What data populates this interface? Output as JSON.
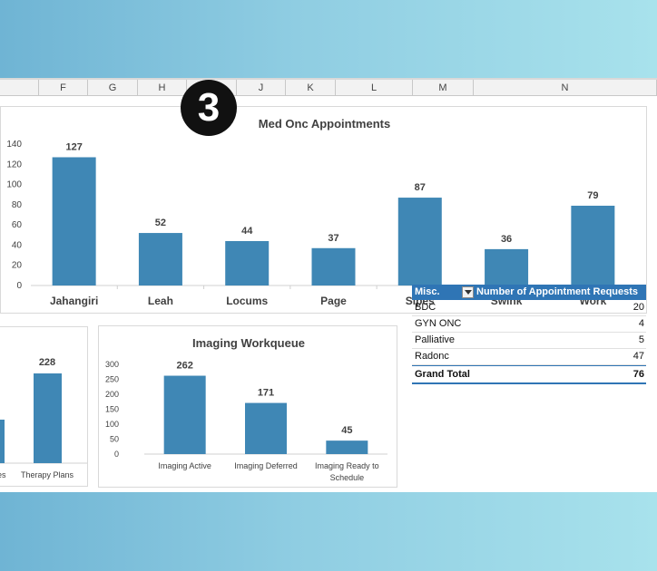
{
  "spreadsheet": {
    "columns": [
      {
        "id": "col-f",
        "label": "F"
      },
      {
        "id": "col-g",
        "label": "G"
      },
      {
        "id": "col-h",
        "label": "H"
      },
      {
        "id": "col-i",
        "label": "I"
      },
      {
        "id": "col-j",
        "label": "J"
      },
      {
        "id": "col-k",
        "label": "K"
      },
      {
        "id": "col-l",
        "label": "L"
      },
      {
        "id": "col-m",
        "label": "M"
      },
      {
        "id": "col-n",
        "label": "N"
      }
    ]
  },
  "step_badge": "3",
  "bar_color": "#3f87b5",
  "chart_data": [
    {
      "type": "bar",
      "title": "Med Onc Appointments",
      "categories": [
        "Jahangiri",
        "Leah",
        "Locums",
        "Page",
        "Sipes",
        "Swink",
        "Work"
      ],
      "values": [
        127,
        52,
        44,
        37,
        87,
        36,
        79
      ],
      "ylim": [
        0,
        140
      ],
      "yticks": [
        0,
        20,
        40,
        60,
        80,
        100,
        120,
        140
      ],
      "grid": false,
      "xlabel": "",
      "ylabel": ""
    },
    {
      "type": "bar",
      "title": "Imaging Workqueue",
      "categories": [
        "Imaging Active",
        "Imaging Deferred",
        "Imaging Ready to Schedule"
      ],
      "values": [
        262,
        171,
        45
      ],
      "ylim": [
        0,
        300
      ],
      "yticks": [
        0,
        50,
        100,
        150,
        200,
        250,
        300
      ],
      "grid": false,
      "xlabel": "",
      "ylabel": ""
    },
    {
      "type": "bar",
      "title": "",
      "categories": [
        "...mies",
        "Therapy Plans"
      ],
      "visible_category_labels": [
        "mies",
        "Therapy Plans"
      ],
      "values": [
        null,
        228
      ],
      "grid": false,
      "xlabel": "",
      "ylabel": ""
    },
    {
      "type": "table",
      "title": "",
      "columns": [
        "Misc.",
        "Number of Appointment Requests"
      ],
      "rows": [
        {
          "label": "BDC",
          "value": 20
        },
        {
          "label": "GYN ONC",
          "value": 4
        },
        {
          "label": "Palliative",
          "value": 5
        },
        {
          "label": "Radonc",
          "value": 47
        }
      ],
      "total": {
        "label": "Grand Total",
        "value": 76
      }
    }
  ]
}
